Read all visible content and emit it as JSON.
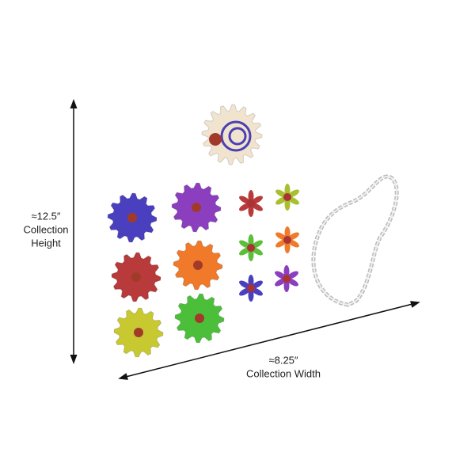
{
  "dimensions": {
    "height": {
      "value": "≈12.5″",
      "caption_lines": [
        "Collection",
        "Height"
      ]
    },
    "width": {
      "value": "≈8.25″",
      "caption": "Collection Width"
    }
  }
}
